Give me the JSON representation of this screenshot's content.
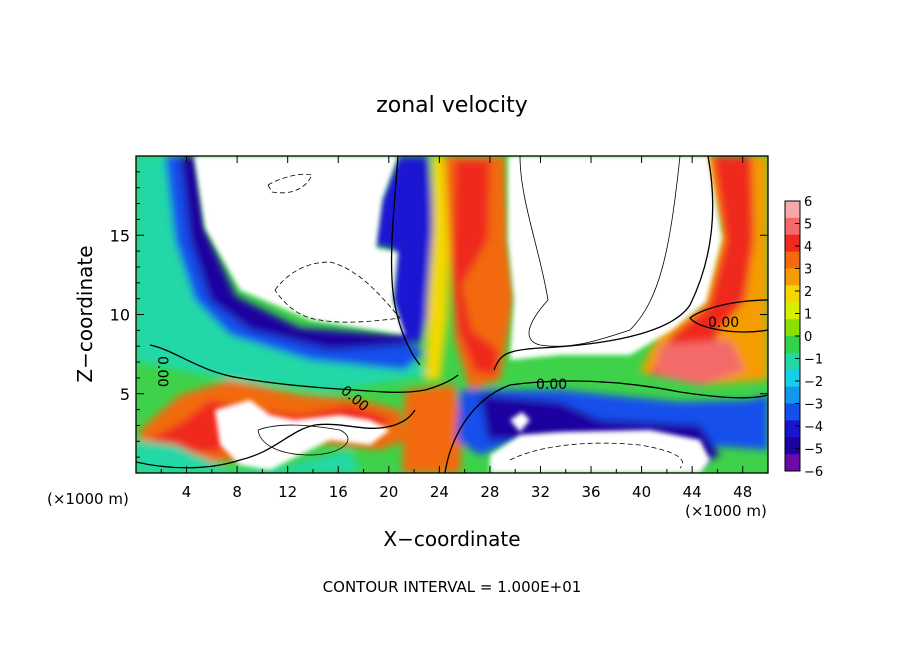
{
  "chart_data": {
    "type": "heatmap",
    "title": "zonal velocity",
    "xlabel": "X−coordinate",
    "ylabel": "Z−coordinate",
    "x_unit_left": "(×1000 m)",
    "x_unit_right": "(×1000 m)",
    "xlim": [
      0,
      50
    ],
    "ylim": [
      0,
      20
    ],
    "xticks": [
      4,
      8,
      12,
      16,
      20,
      24,
      28,
      32,
      36,
      40,
      44,
      48
    ],
    "yticks": [
      5,
      10,
      15
    ],
    "colorbar": {
      "range": [
        -6,
        6
      ],
      "tick_labels": [
        "6",
        "5",
        "4",
        "3",
        "2",
        "1",
        "0",
        "−1",
        "−2",
        "−3",
        "−4",
        "−5",
        "−6"
      ],
      "colors": [
        "#f7a8a8",
        "#f46a6a",
        "#ef2a1e",
        "#f26a0c",
        "#f59c06",
        "#f2d800",
        "#d8ee00",
        "#8ce000",
        "#32d24a",
        "#22d8a6",
        "#14cfe8",
        "#1496ee",
        "#1450ec",
        "#1a14d2",
        "#1c00a0",
        "#6a0aa8"
      ]
    },
    "contour_labels": [
      "0.00",
      "0.00",
      "0.00",
      "0.00"
    ],
    "footer": "CONTOUR INTERVAL = 1.000E+01",
    "grid": false,
    "legend": "colorbar right"
  }
}
